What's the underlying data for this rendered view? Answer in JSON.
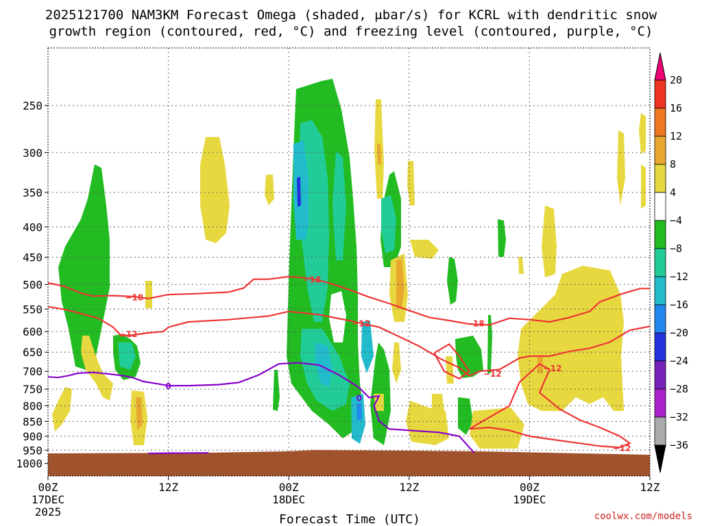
{
  "chart_data": {
    "type": "heatmap",
    "title_line1": "2025121700 NAM3KM Forecast Omega (shaded, μbar/s) for KCRL with dendritic snow",
    "title_line2": "growth region (contoured, red, °C) and freezing level (contoured, purple, °C)",
    "xlabel": "Forecast Time (UTC)",
    "ylabel": "",
    "x_range_hours": [
      0,
      60
    ],
    "y_range_hpa": [
      200,
      1050
    ],
    "y_ticks": [
      250,
      300,
      350,
      400,
      450,
      500,
      550,
      600,
      650,
      700,
      750,
      800,
      850,
      900,
      950,
      1000
    ],
    "x_ticks": [
      {
        "hour": 0,
        "label": "00Z",
        "sub": "17DEC",
        "sub2": "2025"
      },
      {
        "hour": 12,
        "label": "12Z",
        "sub": "",
        "sub2": ""
      },
      {
        "hour": 24,
        "label": "00Z",
        "sub": "18DEC",
        "sub2": ""
      },
      {
        "hour": 36,
        "label": "12Z",
        "sub": "",
        "sub2": ""
      },
      {
        "hour": 48,
        "label": "00Z",
        "sub": "19DEC",
        "sub2": ""
      },
      {
        "hour": 60,
        "label": "12Z",
        "sub": "",
        "sub2": ""
      }
    ],
    "colorbar": {
      "labels": [
        "20",
        "16",
        "12",
        "8",
        "4",
        "−4",
        "−8",
        "−12",
        "−16",
        "−20",
        "−24",
        "−28",
        "−32",
        "−36"
      ],
      "colors": [
        "#ee0077",
        "#ee3322",
        "#ee7722",
        "#e8a830",
        "#e8d840",
        "#ffffff",
        "#22bb22",
        "#22cc99",
        "#22bbcc",
        "#2288ee",
        "#2233dd",
        "#7722bb",
        "#aa22cc",
        "#aaaaaa",
        "#000000"
      ]
    },
    "terrain_color": "#a0522d",
    "isotherm_color": "#ee3333",
    "freezing_color": "#8800cc",
    "contour_labels": [
      {
        "text": "−18",
        "x": 8.6,
        "p": 525
      },
      {
        "text": "−12",
        "x": 8.0,
        "p": 605
      },
      {
        "text": "0",
        "x": 12.0,
        "p": 740
      },
      {
        "text": "−18",
        "x": 26.3,
        "p": 490
      },
      {
        "text": "−12",
        "x": 31.2,
        "p": 580
      },
      {
        "text": "0",
        "x": 31.0,
        "p": 775
      },
      {
        "text": "−18",
        "x": 42.6,
        "p": 580
      },
      {
        "text": "−12",
        "x": 44.3,
        "p": 705
      },
      {
        "text": "−12",
        "x": 50.3,
        "p": 690
      },
      {
        "text": "−12",
        "x": 57.2,
        "p": 940
      }
    ],
    "contours": {
      "m18_upper": [
        [
          0,
          497
        ],
        [
          1.5,
          503
        ],
        [
          3.3,
          517
        ],
        [
          4.5,
          523
        ],
        [
          6.5,
          522
        ],
        [
          8.5,
          524
        ],
        [
          10,
          528
        ],
        [
          12,
          520
        ],
        [
          15,
          518
        ],
        [
          18,
          515
        ],
        [
          19.5,
          507
        ],
        [
          20.5,
          490
        ],
        [
          22,
          490
        ],
        [
          24,
          485
        ],
        [
          26,
          488
        ],
        [
          28,
          497
        ],
        [
          30,
          510
        ],
        [
          32,
          525
        ],
        [
          34,
          538
        ],
        [
          36,
          553
        ],
        [
          38,
          568
        ],
        [
          40,
          575
        ],
        [
          42,
          583
        ],
        [
          44,
          585
        ],
        [
          46,
          570
        ],
        [
          48,
          573
        ],
        [
          50,
          578
        ],
        [
          52,
          568
        ],
        [
          54,
          555
        ],
        [
          55,
          535
        ],
        [
          57,
          520
        ],
        [
          59,
          508
        ],
        [
          60,
          508
        ]
      ],
      "m12_upper": [
        [
          0,
          545
        ],
        [
          1.5,
          550
        ],
        [
          3,
          558
        ],
        [
          5,
          570
        ],
        [
          6.5,
          590
        ],
        [
          7.3,
          610
        ],
        [
          8.5,
          608
        ],
        [
          10,
          603
        ],
        [
          11.5,
          600
        ],
        [
          12,
          590
        ],
        [
          14,
          578
        ],
        [
          18,
          573
        ],
        [
          22,
          565
        ],
        [
          24,
          555
        ],
        [
          27,
          562
        ],
        [
          30,
          575
        ],
        [
          33,
          590
        ],
        [
          35,
          612
        ],
        [
          37,
          635
        ],
        [
          39,
          665
        ],
        [
          40,
          678
        ],
        [
          41,
          690
        ],
        [
          42,
          712
        ],
        [
          43,
          700
        ],
        [
          45,
          695
        ],
        [
          46,
          680
        ],
        [
          47,
          665
        ],
        [
          48,
          660
        ],
        [
          50,
          660
        ],
        [
          52,
          648
        ],
        [
          54,
          640
        ],
        [
          56,
          625
        ],
        [
          58,
          597
        ],
        [
          60,
          588
        ]
      ],
      "m12_lower": [
        [
          42,
          875
        ],
        [
          46,
          800
        ],
        [
          47,
          730
        ],
        [
          48,
          705
        ],
        [
          49,
          680
        ],
        [
          50,
          695
        ],
        [
          49,
          760
        ],
        [
          51,
          810
        ],
        [
          53,
          845
        ],
        [
          55,
          870
        ],
        [
          57,
          900
        ],
        [
          58,
          925
        ],
        [
          57,
          940
        ],
        [
          55,
          935
        ],
        [
          52,
          920
        ],
        [
          50,
          910
        ],
        [
          48,
          900
        ],
        [
          46,
          880
        ],
        [
          44,
          870
        ],
        [
          42,
          875
        ]
      ],
      "m12_dip": [
        [
          38.5,
          652
        ],
        [
          40,
          630
        ],
        [
          41,
          660
        ],
        [
          42,
          700
        ],
        [
          41,
          720
        ],
        [
          39.5,
          700
        ],
        [
          38.5,
          652
        ]
      ],
      "freezing": [
        [
          0,
          715
        ],
        [
          1,
          717
        ],
        [
          2,
          712
        ],
        [
          3,
          705
        ],
        [
          4.5,
          703
        ],
        [
          6,
          707
        ],
        [
          7.5,
          712
        ],
        [
          8.5,
          718
        ],
        [
          9.5,
          728
        ],
        [
          11,
          735
        ],
        [
          12,
          740
        ],
        [
          14,
          740
        ],
        [
          17,
          737
        ],
        [
          19,
          731
        ],
        [
          21,
          710
        ],
        [
          23,
          680
        ],
        [
          25,
          677
        ],
        [
          27,
          683
        ],
        [
          29,
          710
        ],
        [
          31,
          745
        ],
        [
          32,
          775
        ],
        [
          33,
          770
        ],
        [
          32.5,
          800
        ],
        [
          33,
          848
        ],
        [
          34,
          875
        ],
        [
          36,
          880
        ],
        [
          39,
          887
        ],
        [
          41,
          900
        ],
        [
          42,
          940
        ],
        [
          42.5,
          960
        ]
      ],
      "freezing_sfc": [
        [
          10,
          962
        ],
        [
          12,
          961
        ],
        [
          16,
          960
        ]
      ]
    }
  }
}
